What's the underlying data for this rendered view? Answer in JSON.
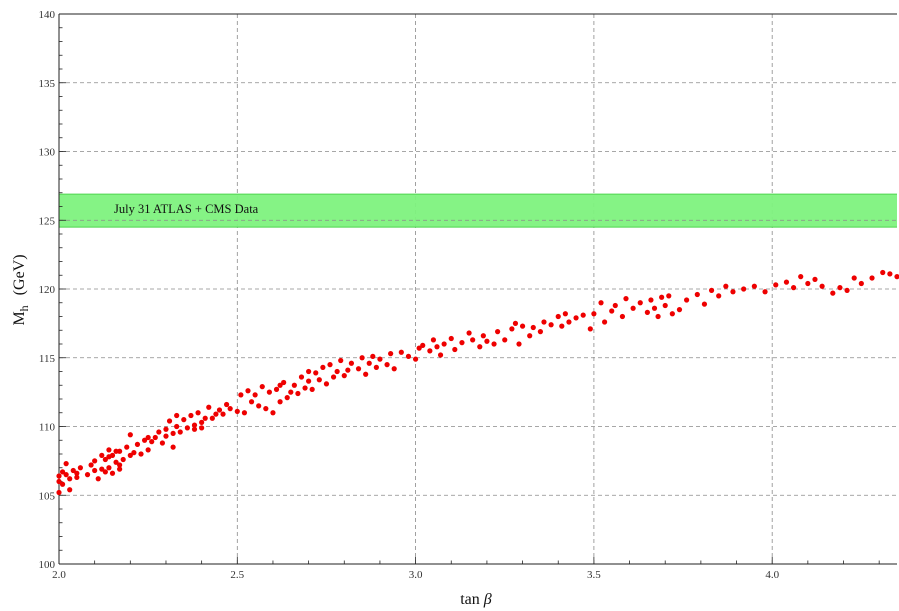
{
  "chart_data": {
    "type": "scatter",
    "xlabel_main": "tan",
    "xlabel_symbol": "β",
    "ylabel_main": "M",
    "ylabel_sub": "h",
    "ylabel_unit": "(GeV)",
    "xlim": [
      2.0,
      4.35
    ],
    "ylim": [
      100,
      140
    ],
    "x_ticks": [
      2.0,
      2.5,
      3.0,
      3.5,
      4.0
    ],
    "x_tick_labels": [
      "2.0",
      "2.5",
      "3.0",
      "3.5",
      "4.0"
    ],
    "y_ticks": [
      100,
      105,
      110,
      115,
      120,
      125,
      130,
      135,
      140
    ],
    "y_tick_labels": [
      "100",
      "105",
      "110",
      "115",
      "120",
      "125",
      "130",
      "135",
      "140"
    ],
    "grid": true,
    "band": {
      "label": "July 31 ATLAS + CMS Data",
      "y_low": 124.5,
      "y_high": 126.9,
      "center": 125.0,
      "color": "#7ef27e"
    },
    "point_color": "#ee0000",
    "points": [
      [
        2.0,
        105.2
      ],
      [
        2.0,
        106.0
      ],
      [
        2.0,
        106.4
      ],
      [
        2.01,
        106.7
      ],
      [
        2.01,
        105.8
      ],
      [
        2.02,
        106.5
      ],
      [
        2.02,
        107.3
      ],
      [
        2.03,
        106.2
      ],
      [
        2.03,
        105.4
      ],
      [
        2.04,
        106.8
      ],
      [
        2.05,
        106.6
      ],
      [
        2.05,
        106.3
      ],
      [
        2.06,
        107.0
      ],
      [
        2.08,
        106.5
      ],
      [
        2.09,
        107.2
      ],
      [
        2.1,
        106.8
      ],
      [
        2.1,
        107.5
      ],
      [
        2.11,
        106.2
      ],
      [
        2.12,
        107.9
      ],
      [
        2.12,
        106.9
      ],
      [
        2.13,
        106.7
      ],
      [
        2.13,
        107.6
      ],
      [
        2.14,
        108.3
      ],
      [
        2.14,
        107.8
      ],
      [
        2.14,
        107.0
      ],
      [
        2.15,
        106.6
      ],
      [
        2.15,
        107.9
      ],
      [
        2.16,
        108.2
      ],
      [
        2.16,
        107.4
      ],
      [
        2.17,
        107.2
      ],
      [
        2.17,
        108.2
      ],
      [
        2.17,
        106.9
      ],
      [
        2.18,
        107.6
      ],
      [
        2.19,
        108.5
      ],
      [
        2.2,
        107.9
      ],
      [
        2.2,
        109.4
      ],
      [
        2.21,
        108.1
      ],
      [
        2.22,
        108.7
      ],
      [
        2.23,
        108.0
      ],
      [
        2.24,
        109.0
      ],
      [
        2.25,
        109.2
      ],
      [
        2.25,
        108.3
      ],
      [
        2.26,
        108.9
      ],
      [
        2.27,
        109.2
      ],
      [
        2.28,
        109.6
      ],
      [
        2.29,
        108.8
      ],
      [
        2.3,
        109.8
      ],
      [
        2.3,
        109.3
      ],
      [
        2.31,
        110.4
      ],
      [
        2.32,
        109.5
      ],
      [
        2.32,
        108.5
      ],
      [
        2.33,
        110.0
      ],
      [
        2.33,
        110.8
      ],
      [
        2.34,
        109.6
      ],
      [
        2.35,
        110.5
      ],
      [
        2.36,
        109.9
      ],
      [
        2.37,
        110.8
      ],
      [
        2.38,
        110.1
      ],
      [
        2.38,
        109.8
      ],
      [
        2.39,
        111.0
      ],
      [
        2.4,
        110.3
      ],
      [
        2.4,
        109.9
      ],
      [
        2.41,
        110.6
      ],
      [
        2.42,
        111.4
      ],
      [
        2.43,
        110.6
      ],
      [
        2.44,
        110.9
      ],
      [
        2.45,
        111.2
      ],
      [
        2.46,
        110.9
      ],
      [
        2.47,
        111.6
      ],
      [
        2.48,
        111.3
      ],
      [
        2.5,
        111.1
      ],
      [
        2.51,
        112.3
      ],
      [
        2.52,
        111.0
      ],
      [
        2.53,
        112.6
      ],
      [
        2.54,
        111.8
      ],
      [
        2.55,
        112.3
      ],
      [
        2.56,
        111.5
      ],
      [
        2.57,
        112.9
      ],
      [
        2.58,
        111.3
      ],
      [
        2.59,
        112.5
      ],
      [
        2.6,
        111.0
      ],
      [
        2.61,
        112.7
      ],
      [
        2.62,
        113.0
      ],
      [
        2.62,
        111.8
      ],
      [
        2.63,
        113.2
      ],
      [
        2.64,
        112.1
      ],
      [
        2.65,
        112.5
      ],
      [
        2.66,
        113.0
      ],
      [
        2.67,
        112.4
      ],
      [
        2.68,
        113.6
      ],
      [
        2.69,
        112.8
      ],
      [
        2.7,
        114.0
      ],
      [
        2.7,
        113.3
      ],
      [
        2.71,
        112.7
      ],
      [
        2.72,
        113.9
      ],
      [
        2.73,
        113.4
      ],
      [
        2.74,
        114.3
      ],
      [
        2.75,
        113.1
      ],
      [
        2.76,
        114.5
      ],
      [
        2.77,
        113.6
      ],
      [
        2.78,
        114.0
      ],
      [
        2.79,
        114.8
      ],
      [
        2.8,
        113.7
      ],
      [
        2.81,
        114.1
      ],
      [
        2.82,
        114.6
      ],
      [
        2.84,
        114.2
      ],
      [
        2.85,
        115.0
      ],
      [
        2.86,
        113.8
      ],
      [
        2.87,
        114.6
      ],
      [
        2.88,
        115.1
      ],
      [
        2.89,
        114.3
      ],
      [
        2.9,
        114.9
      ],
      [
        2.92,
        114.5
      ],
      [
        2.93,
        115.3
      ],
      [
        2.94,
        114.2
      ],
      [
        2.96,
        115.4
      ],
      [
        2.98,
        115.1
      ],
      [
        3.0,
        114.9
      ],
      [
        3.01,
        115.7
      ],
      [
        3.02,
        115.9
      ],
      [
        3.04,
        115.5
      ],
      [
        3.05,
        116.3
      ],
      [
        3.06,
        115.8
      ],
      [
        3.07,
        115.2
      ],
      [
        3.08,
        116.0
      ],
      [
        3.1,
        116.4
      ],
      [
        3.11,
        115.6
      ],
      [
        3.13,
        116.1
      ],
      [
        3.15,
        116.8
      ],
      [
        3.16,
        116.3
      ],
      [
        3.18,
        115.8
      ],
      [
        3.19,
        116.6
      ],
      [
        3.2,
        116.2
      ],
      [
        3.22,
        116.0
      ],
      [
        3.23,
        116.9
      ],
      [
        3.25,
        116.3
      ],
      [
        3.27,
        117.1
      ],
      [
        3.28,
        117.5
      ],
      [
        3.29,
        116.0
      ],
      [
        3.3,
        117.3
      ],
      [
        3.32,
        116.6
      ],
      [
        3.33,
        117.2
      ],
      [
        3.35,
        116.9
      ],
      [
        3.36,
        117.6
      ],
      [
        3.38,
        117.4
      ],
      [
        3.4,
        118.0
      ],
      [
        3.41,
        117.3
      ],
      [
        3.42,
        118.2
      ],
      [
        3.43,
        117.6
      ],
      [
        3.45,
        117.9
      ],
      [
        3.47,
        118.1
      ],
      [
        3.49,
        117.1
      ],
      [
        3.5,
        118.2
      ],
      [
        3.52,
        119.0
      ],
      [
        3.53,
        117.6
      ],
      [
        3.55,
        118.4
      ],
      [
        3.56,
        118.8
      ],
      [
        3.58,
        118.0
      ],
      [
        3.59,
        119.3
      ],
      [
        3.61,
        118.6
      ],
      [
        3.63,
        119.0
      ],
      [
        3.65,
        118.3
      ],
      [
        3.66,
        119.2
      ],
      [
        3.67,
        118.6
      ],
      [
        3.68,
        118.0
      ],
      [
        3.69,
        119.4
      ],
      [
        3.7,
        118.8
      ],
      [
        3.71,
        119.5
      ],
      [
        3.72,
        118.2
      ],
      [
        3.74,
        118.5
      ],
      [
        3.76,
        119.2
      ],
      [
        3.79,
        119.6
      ],
      [
        3.81,
        118.9
      ],
      [
        3.83,
        119.9
      ],
      [
        3.85,
        119.5
      ],
      [
        3.87,
        120.2
      ],
      [
        3.89,
        119.8
      ],
      [
        3.92,
        120.0
      ],
      [
        3.95,
        120.2
      ],
      [
        3.98,
        119.8
      ],
      [
        4.01,
        120.3
      ],
      [
        4.04,
        120.5
      ],
      [
        4.06,
        120.1
      ],
      [
        4.08,
        120.9
      ],
      [
        4.1,
        120.4
      ],
      [
        4.12,
        120.7
      ],
      [
        4.14,
        120.2
      ],
      [
        4.17,
        119.7
      ],
      [
        4.19,
        120.1
      ],
      [
        4.21,
        119.9
      ],
      [
        4.23,
        120.8
      ],
      [
        4.25,
        120.4
      ],
      [
        4.28,
        120.8
      ],
      [
        4.31,
        121.2
      ],
      [
        4.33,
        121.1
      ],
      [
        4.35,
        120.9
      ]
    ]
  }
}
